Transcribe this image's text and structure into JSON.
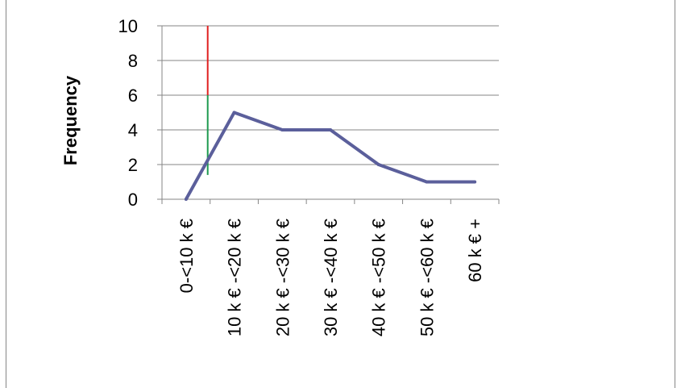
{
  "chart_data": {
    "type": "line",
    "title": "",
    "xlabel": "",
    "ylabel": "Frequency",
    "categories": [
      "0-<10 k €",
      "10 k € -<20 k €",
      "20 k € -<30 k €",
      "30 k € -<40 k €",
      "40 k € -<50 k €",
      "50 k € -<60 k €",
      "60 k € +"
    ],
    "series": [
      {
        "values": [
          0,
          5,
          4,
          4,
          2,
          1,
          1
        ]
      }
    ],
    "ylim": [
      0,
      10
    ],
    "yticks": [
      "0",
      "2",
      "4",
      "6",
      "8",
      "10"
    ],
    "grid": true,
    "legend": "none",
    "annotations": [
      {
        "kind": "vertical-segment",
        "x_between": [
          0,
          1
        ],
        "y_from": 6,
        "y_to": 10,
        "color": "#e02020"
      },
      {
        "kind": "vertical-segment",
        "x_between": [
          0,
          1
        ],
        "y_from": 1.4,
        "y_to": 6,
        "color": "#1e9a50"
      }
    ],
    "colors": {
      "series": "#5b5f9b",
      "grid": "#868686",
      "axis": "#868686"
    }
  }
}
